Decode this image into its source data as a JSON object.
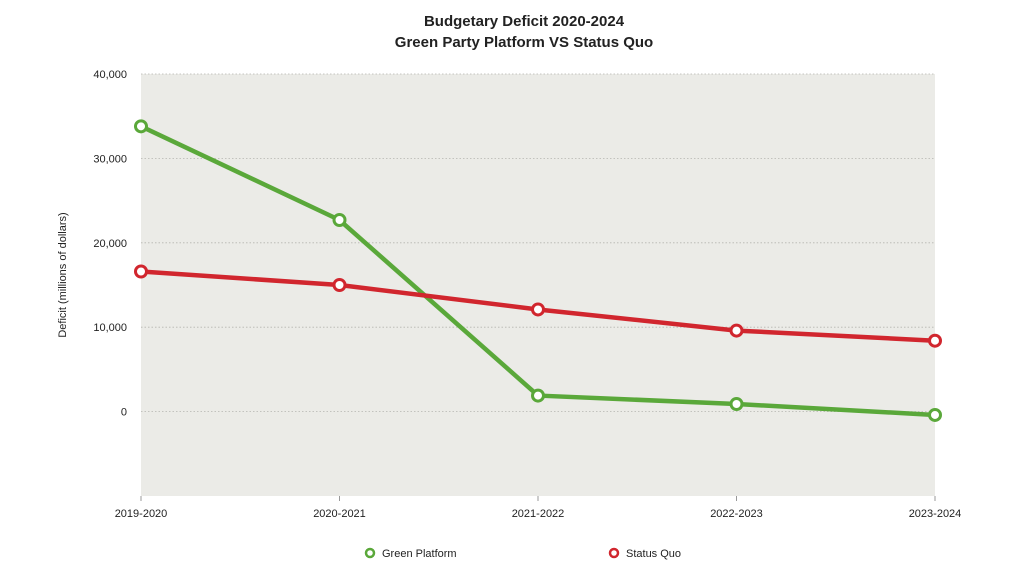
{
  "chart_data": {
    "type": "line",
    "title": "Budgetary Deficit  2020-2024",
    "subtitle": "Green Party Platform VS Status Quo",
    "xlabel": "",
    "ylabel": "Deficit (millions of dollars)",
    "categories": [
      "2019-2020",
      "2020-2021",
      "2021-2022",
      "2022-2023",
      "2023-2024"
    ],
    "ylim": [
      -10000,
      40000
    ],
    "yticks": [
      0,
      10000,
      20000,
      30000,
      40000
    ],
    "ytick_labels": [
      "0",
      "10,000",
      "20,000",
      "30,000",
      "40,000"
    ],
    "grid": true,
    "legend_position": "bottom",
    "series": [
      {
        "name": "Green Platform",
        "color": "#5aa83a",
        "values": [
          33800,
          22700,
          1900,
          900,
          -400
        ]
      },
      {
        "name": "Status Quo",
        "color": "#d1262e",
        "values": [
          16600,
          15000,
          12100,
          9600,
          8400
        ]
      }
    ]
  }
}
